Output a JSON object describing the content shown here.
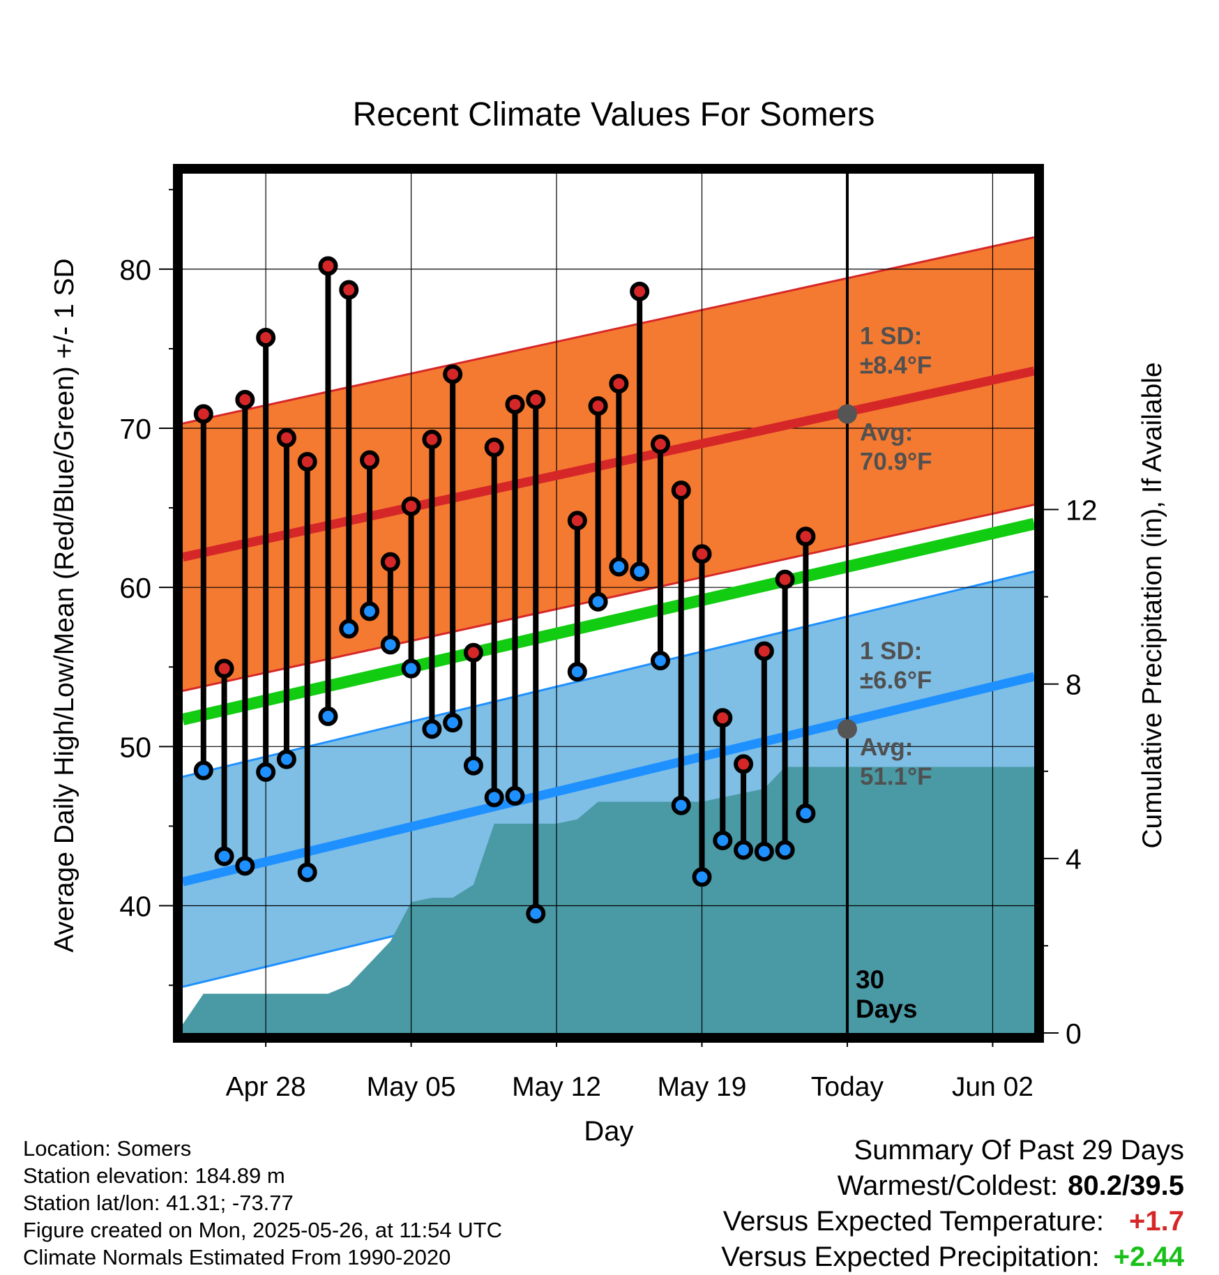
{
  "chart_data": {
    "type": "line",
    "title": "Recent Climate Values For Somers",
    "xlabel": "Day",
    "ylabel": "Average Daily High/Low/Mean (Red/Blue/Green) +/- 1 SD",
    "y2label": "Cumulative Precipitation (in), If Available",
    "xlim": [
      "2025-04-24",
      "2025-06-04"
    ],
    "ylim": [
      32,
      86
    ],
    "y2lim": [
      0,
      19.7
    ],
    "grid": true,
    "x_ticks": [
      "2025-04-28",
      "2025-05-05",
      "2025-05-12",
      "2025-05-19",
      "2025-05-26",
      "2025-06-02"
    ],
    "x_tick_labels": [
      "Apr 28",
      "May 05",
      "May 12",
      "May 19",
      "Today",
      "Jun 02"
    ],
    "y_ticks": [
      40,
      50,
      60,
      70,
      80
    ],
    "y2_ticks": [
      0,
      4,
      8,
      12
    ],
    "today": "2025-05-26",
    "period_label": "30\nDays",
    "dates": [
      "2025-04-25",
      "2025-04-26",
      "2025-04-27",
      "2025-04-28",
      "2025-04-29",
      "2025-04-30",
      "2025-05-01",
      "2025-05-02",
      "2025-05-03",
      "2025-05-04",
      "2025-05-05",
      "2025-05-06",
      "2025-05-07",
      "2025-05-08",
      "2025-05-09",
      "2025-05-10",
      "2025-05-11",
      "2025-05-12",
      "2025-05-13",
      "2025-05-14",
      "2025-05-15",
      "2025-05-16",
      "2025-05-17",
      "2025-05-18",
      "2025-05-19",
      "2025-05-20",
      "2025-05-21",
      "2025-05-22",
      "2025-05-23",
      "2025-05-24",
      "2025-05-25"
    ],
    "series": [
      {
        "name": "High",
        "color": "#d62728",
        "values": [
          70.9,
          54.9,
          71.8,
          75.7,
          69.4,
          67.9,
          80.2,
          78.7,
          68.0,
          61.6,
          65.1,
          69.3,
          73.4,
          55.9,
          68.8,
          71.5,
          71.8,
          null,
          64.2,
          71.4,
          72.8,
          78.6,
          69.0,
          66.1,
          62.1,
          51.8,
          48.9,
          56.0,
          60.5,
          63.2,
          null
        ]
      },
      {
        "name": "Low",
        "color": "#1e90ff",
        "values": [
          48.5,
          43.1,
          42.5,
          48.4,
          49.2,
          42.1,
          51.9,
          57.4,
          58.5,
          56.4,
          54.9,
          51.1,
          51.5,
          48.8,
          46.8,
          46.9,
          39.5,
          null,
          54.7,
          59.1,
          61.3,
          61.0,
          55.4,
          46.3,
          41.8,
          44.1,
          43.5,
          43.4,
          43.5,
          45.8,
          null
        ]
      },
      {
        "name": "Mean",
        "color": "#11cc11",
        "x": [
          "2025-04-24",
          "2025-06-04"
        ],
        "values": [
          51.7,
          64.0
        ]
      },
      {
        "name": "Avg High",
        "color": "#d62728",
        "x": [
          "2025-04-24",
          "2025-06-04"
        ],
        "values": [
          61.9,
          73.6
        ],
        "sd": 8.4
      },
      {
        "name": "Avg Low",
        "color": "#1e90ff",
        "x": [
          "2025-04-24",
          "2025-06-04"
        ],
        "values": [
          41.5,
          54.4
        ],
        "sd": 6.6
      },
      {
        "name": "Cumulative Precipitation",
        "color": "#4a9aa5",
        "axis": "y2",
        "x": [
          "2025-04-24",
          "2025-04-25",
          "2025-05-01",
          "2025-05-02",
          "2025-05-03",
          "2025-05-04",
          "2025-05-05",
          "2025-05-06",
          "2025-05-07",
          "2025-05-08",
          "2025-05-09",
          "2025-05-11",
          "2025-05-12",
          "2025-05-13",
          "2025-05-14",
          "2025-05-17",
          "2025-05-19",
          "2025-05-20",
          "2025-05-21",
          "2025-05-22",
          "2025-05-23",
          "2025-05-26",
          "2025-06-04"
        ],
        "values": [
          0.2,
          0.9,
          0.9,
          1.1,
          1.6,
          2.1,
          3.0,
          3.1,
          3.1,
          3.4,
          4.8,
          4.8,
          4.8,
          4.9,
          5.3,
          5.3,
          5.3,
          5.4,
          5.5,
          5.6,
          6.1,
          6.1,
          6.1
        ]
      }
    ],
    "annotations": {
      "high_sd_label": "1 SD:",
      "high_sd_value": "±8.4°F",
      "high_avg_label": "Avg:",
      "high_avg_value": "70.9°F",
      "low_sd_label": "1 SD:",
      "low_sd_value": "±6.6°F",
      "low_avg_label": "Avg:",
      "low_avg_value": "51.1°F",
      "high_avg_marker": 70.9,
      "low_avg_marker": 51.1
    }
  },
  "info": {
    "location": "Location: Somers",
    "elevation": "Station elevation: 184.89 m",
    "latlon": "Station lat/lon: 41.31; -73.77",
    "created": "Figure created on Mon, 2025-05-26, at 11:54 UTC",
    "normals": "Climate Normals Estimated From 1990-2020"
  },
  "summary": {
    "title": "Summary Of Past 29 Days",
    "warmest_label": "Warmest/Coldest:",
    "warmest_value": "80.2/39.5",
    "temp_label": "Versus Expected Temperature:",
    "temp_value": "+1.7",
    "precip_label": "Versus Expected Precipitation:",
    "precip_value": "+2.44"
  }
}
